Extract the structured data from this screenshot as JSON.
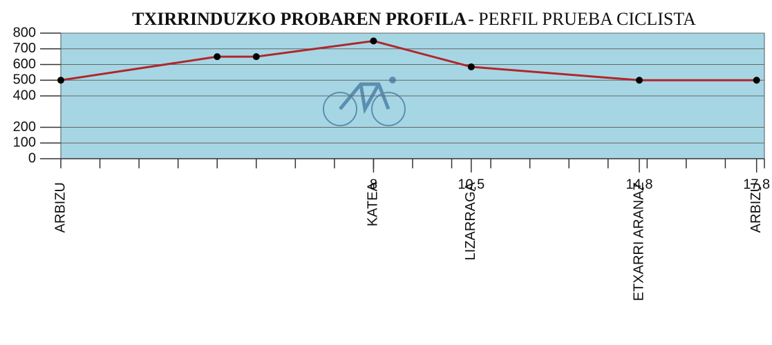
{
  "chart_data": {
    "type": "line",
    "title": "TXIRRINDUZKO PROBAREN PROFILA",
    "subtitle": "- PERFIL PRUEBA CICLISTA",
    "x": [
      0,
      4,
      5,
      8,
      10.5,
      14.8,
      17.8
    ],
    "series": [
      {
        "color": "#b0262b",
        "values": [
          500,
          650,
          650,
          750,
          585,
          500,
          500
        ]
      }
    ],
    "xlim": [
      0,
      18
    ],
    "xticks": [
      {
        "value": 8,
        "label": "8"
      },
      {
        "value": 10.5,
        "label": "10,5"
      },
      {
        "value": 14.8,
        "label": "14,8"
      },
      {
        "value": 17.8,
        "label": "17,8"
      }
    ],
    "xminor_ticks": [
      0,
      1,
      2,
      3,
      4,
      5,
      6,
      7,
      8,
      9,
      10,
      11,
      12,
      13,
      14,
      15,
      16,
      17,
      18
    ],
    "places": [
      {
        "x": 0,
        "name": "ARBIZU"
      },
      {
        "x": 8,
        "name": "KATEA"
      },
      {
        "x": 10.5,
        "name": "LIZARRAGA"
      },
      {
        "x": 14.8,
        "name": "ETXARRI ARANAZ"
      },
      {
        "x": 17.8,
        "name": "ARBIZU"
      }
    ],
    "ylim": [
      0,
      800
    ],
    "yticks": [
      0,
      100,
      200,
      400,
      500,
      600,
      700,
      800
    ],
    "grid": true,
    "background": "#a6d6e4"
  }
}
